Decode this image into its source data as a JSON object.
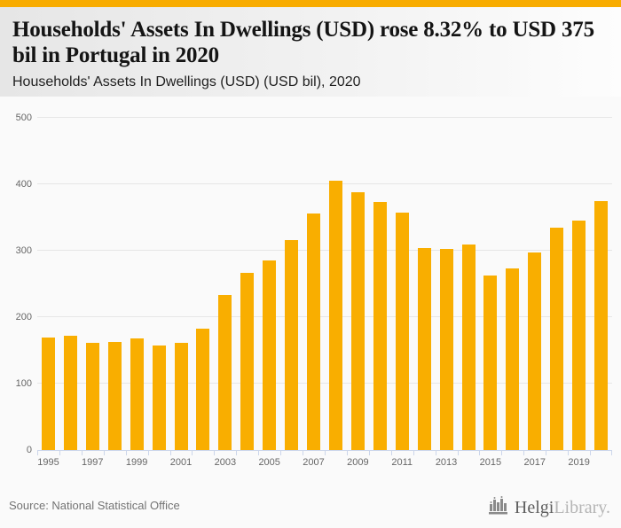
{
  "header": {
    "title": "Households' Assets In Dwellings (USD) rose 8.32% to USD 375 bil in Portugal in 2020",
    "subtitle": "Households' Assets In Dwellings (USD) (USD bil), 2020"
  },
  "chart_data": {
    "type": "bar",
    "title": "Households' Assets In Dwellings (USD) (USD bil), 2020",
    "categories": [
      "1995",
      "1996",
      "1997",
      "1998",
      "1999",
      "2000",
      "2001",
      "2002",
      "2003",
      "2004",
      "2005",
      "2006",
      "2007",
      "2008",
      "2009",
      "2010",
      "2011",
      "2012",
      "2013",
      "2014",
      "2015",
      "2016",
      "2017",
      "2018",
      "2019",
      "2020"
    ],
    "values": [
      170,
      172,
      161,
      163,
      168,
      158,
      161,
      183,
      234,
      267,
      286,
      316,
      356,
      405,
      388,
      373,
      357,
      304,
      303,
      310,
      263,
      273,
      297,
      335,
      346,
      375
    ],
    "xlabel": "",
    "ylabel": "",
    "ylim": [
      0,
      500
    ],
    "yticks": [
      0,
      100,
      200,
      300,
      400,
      500
    ],
    "xtick_labels": [
      "1995",
      "1997",
      "1999",
      "2001",
      "2003",
      "2005",
      "2007",
      "2009",
      "2011",
      "2013",
      "2015",
      "2017",
      "2019"
    ],
    "grid": true,
    "legend": false,
    "bar_color": "#F9AE00",
    "grid_color": "#E6E6E6",
    "axis_color": "#CCD6EB",
    "tick_label_color": "#666666"
  },
  "footer": {
    "source": "Source: National Statistical Office",
    "logo_primary": "Helgi",
    "logo_secondary": "Library."
  }
}
